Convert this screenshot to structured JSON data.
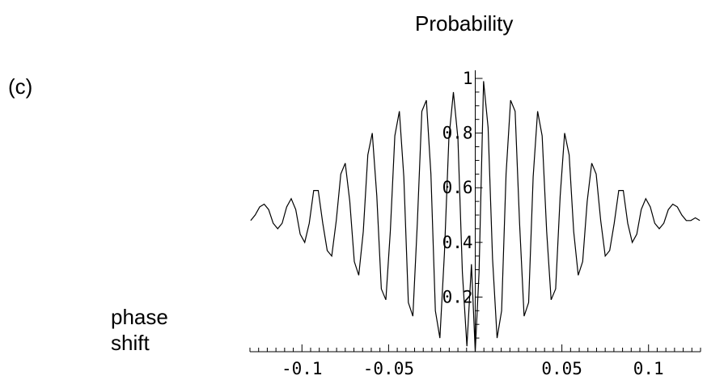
{
  "panel_label": "(c)",
  "chart_data": {
    "type": "line",
    "title": "Probability",
    "xlabel": "phase shift",
    "ylabel": "",
    "xlim": [
      -0.13,
      0.13
    ],
    "ylim": [
      0,
      1
    ],
    "grid": false,
    "x_ticks": [
      -0.1,
      -0.05,
      0.05,
      0.1
    ],
    "x_tick_labels": [
      "-0.1",
      "-0.05",
      "0.05",
      "0.1"
    ],
    "y_ticks": [
      0.2,
      0.4,
      0.6,
      0.8,
      1
    ],
    "y_tick_labels": [
      "0.2",
      "0.4",
      "0.6",
      "0.8",
      "1"
    ],
    "series": [
      {
        "x": [
          -0.1296,
          -0.127,
          -0.1244,
          -0.1218,
          -0.1192,
          -0.1166,
          -0.114,
          -0.1114,
          -0.1088,
          -0.1062,
          -0.1036,
          -0.101,
          -0.0984,
          -0.0958,
          -0.0932,
          -0.0906,
          -0.088,
          -0.0854,
          -0.0828,
          -0.0802,
          -0.0776,
          -0.075,
          -0.0724,
          -0.0698,
          -0.0672,
          -0.0646,
          -0.062,
          -0.0594,
          -0.0568,
          -0.0542,
          -0.0516,
          -0.049,
          -0.0464,
          -0.0438,
          -0.0412,
          -0.0386,
          -0.036,
          -0.0334,
          -0.0308,
          -0.0282,
          -0.0256,
          -0.023,
          -0.0204,
          -0.0178,
          -0.0152,
          -0.0126,
          -0.01,
          -0.0074,
          -0.0048,
          -0.0022,
          0.0,
          0.0022,
          0.0048,
          0.0074,
          0.01,
          0.0126,
          0.0152,
          0.0178,
          0.0204,
          0.023,
          0.0256,
          0.0282,
          0.0308,
          0.0334,
          0.036,
          0.0386,
          0.0412,
          0.0438,
          0.0464,
          0.049,
          0.0516,
          0.0542,
          0.0568,
          0.0594,
          0.062,
          0.0646,
          0.0672,
          0.0698,
          0.0724,
          0.075,
          0.0776,
          0.0802,
          0.0828,
          0.0854,
          0.088,
          0.0906,
          0.0932,
          0.0958,
          0.0984,
          0.101,
          0.1036,
          0.1062,
          0.1088,
          0.1114,
          0.114,
          0.1166,
          0.1192,
          0.1218,
          0.1244,
          0.127,
          0.1296
        ],
        "y": [
          0.48,
          0.5,
          0.53,
          0.54,
          0.52,
          0.47,
          0.45,
          0.47,
          0.53,
          0.56,
          0.52,
          0.43,
          0.4,
          0.47,
          0.59,
          0.59,
          0.47,
          0.37,
          0.35,
          0.48,
          0.65,
          0.69,
          0.55,
          0.33,
          0.28,
          0.44,
          0.72,
          0.8,
          0.57,
          0.23,
          0.19,
          0.44,
          0.79,
          0.88,
          0.64,
          0.18,
          0.13,
          0.47,
          0.88,
          0.92,
          0.65,
          0.15,
          0.05,
          0.36,
          0.78,
          0.95,
          0.78,
          0.29,
          0.02,
          0.32,
          0.0,
          0.29,
          0.99,
          0.82,
          0.34,
          0.05,
          0.15,
          0.65,
          0.92,
          0.88,
          0.47,
          0.13,
          0.18,
          0.64,
          0.88,
          0.79,
          0.44,
          0.19,
          0.23,
          0.57,
          0.8,
          0.72,
          0.44,
          0.28,
          0.33,
          0.55,
          0.69,
          0.65,
          0.48,
          0.35,
          0.37,
          0.47,
          0.59,
          0.59,
          0.47,
          0.4,
          0.43,
          0.52,
          0.56,
          0.53,
          0.47,
          0.45,
          0.47,
          0.52,
          0.54,
          0.53,
          0.5,
          0.48,
          0.48,
          0.49,
          0.48
        ]
      }
    ]
  }
}
